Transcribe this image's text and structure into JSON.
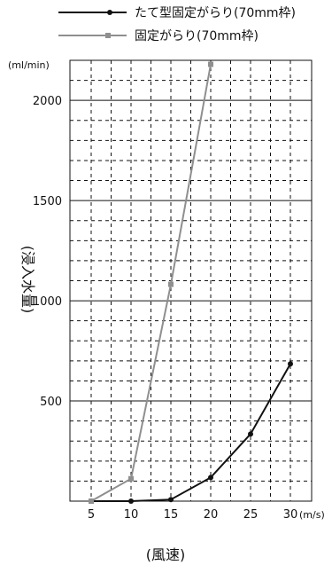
{
  "chart_data": {
    "type": "line",
    "x": [
      5,
      10,
      15,
      20,
      25,
      30
    ],
    "xlim": [
      5,
      30
    ],
    "ylim": [
      0,
      2200
    ],
    "x_ticks": [
      "5",
      "10",
      "15",
      "20",
      "25",
      "30"
    ],
    "y_ticks": [
      "500",
      "1000",
      "1500",
      "2000"
    ],
    "x_unit": "(m/s)",
    "y_unit": "(ml/min)",
    "xlabel": "(風速)",
    "ylabel": "(浸入水量)",
    "grid": true,
    "legend_position": "top-right",
    "series": [
      {
        "name": "たて型固定がらり(70mm枠)",
        "color": "#111111",
        "marker": "circle",
        "values": [
          0,
          0,
          8,
          118,
          335,
          685
        ]
      },
      {
        "name": "固定がらり(70mm枠)",
        "color": "#8f8f8f",
        "marker": "square",
        "values": [
          0,
          112,
          1082,
          2180,
          null,
          null
        ]
      }
    ]
  }
}
